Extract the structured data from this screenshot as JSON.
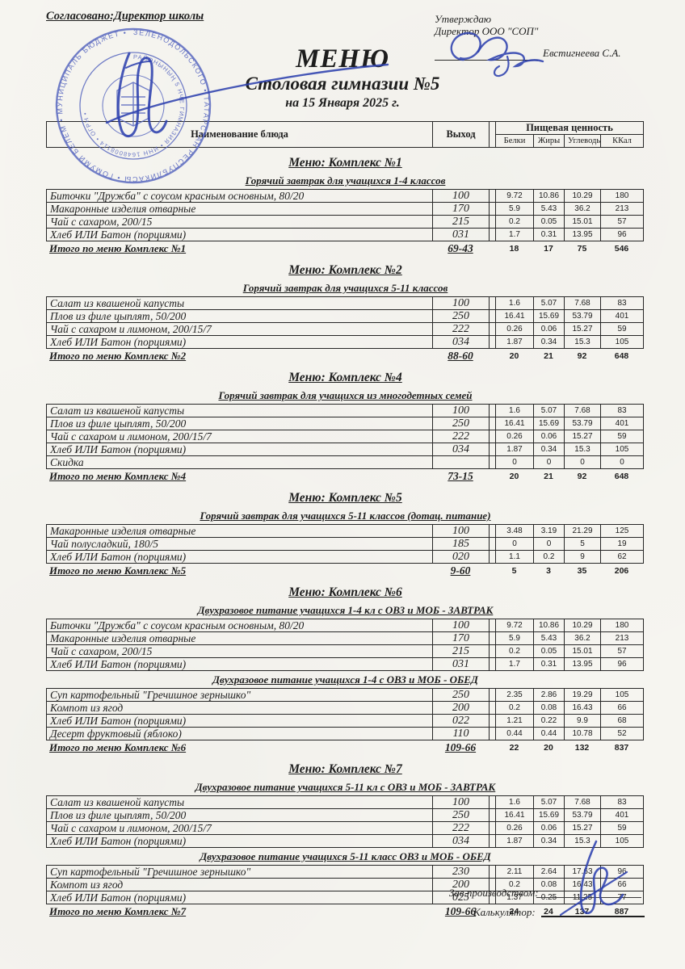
{
  "approval_left": "Согласовано:Директор школы",
  "approval_right": {
    "line1": "Утверждаю",
    "line2": "Директор ООО \"СОП\"",
    "signer": "Евстигнеева С.А."
  },
  "title": {
    "main": "МЕНЮ",
    "org": "Столовая гимназии №5",
    "date": "на 15 Января 2025 г."
  },
  "columns": {
    "dish": "Наименование блюда",
    "output": "Выход",
    "nutrition_group": "Пищевая ценность",
    "nutrition": [
      "Белки",
      "Жиры",
      "Углеводы",
      "ККал"
    ]
  },
  "sections": [
    {
      "title": "Меню: Комплекс №1",
      "subsections": [
        {
          "subtitle": "Горячий завтрак для учащихся 1-4 классов",
          "rows": [
            [
              "Биточки  \"Дружба\" с соусом красным основным, 80/20",
              "100",
              "9.72",
              "10.86",
              "10.29",
              "180"
            ],
            [
              "Макаронные изделия отварные",
              "170",
              "5.9",
              "5.43",
              "36.2",
              "213"
            ],
            [
              "Чай с сахаром, 200/15",
              "215",
              "0.2",
              "0.05",
              "15.01",
              "57"
            ],
            [
              "Хлеб ИЛИ Батон (порциями)",
              "031",
              "1.7",
              "0.31",
              "13.95",
              "96"
            ]
          ]
        }
      ],
      "total": {
        "label": "Итого по меню Комплекс №1",
        "output": "69-43",
        "values": [
          "18",
          "17",
          "75",
          "546"
        ]
      }
    },
    {
      "title": "Меню: Комплекс №2",
      "subsections": [
        {
          "subtitle": "Горячий завтрак для учащихся 5-11 классов",
          "rows": [
            [
              "Салат из квашеной капусты",
              "100",
              "1.6",
              "5.07",
              "7.68",
              "83"
            ],
            [
              "Плов из филе цыплят, 50/200",
              "250",
              "16.41",
              "15.69",
              "53.79",
              "401"
            ],
            [
              "Чай с сахаром и лимоном, 200/15/7",
              "222",
              "0.26",
              "0.06",
              "15.27",
              "59"
            ],
            [
              "Хлеб ИЛИ Батон (порциями)",
              "034",
              "1.87",
              "0.34",
              "15.3",
              "105"
            ]
          ]
        }
      ],
      "total": {
        "label": "Итого по меню Комплекс №2",
        "output": "88-60",
        "values": [
          "20",
          "21",
          "92",
          "648"
        ]
      }
    },
    {
      "title": "Меню: Комплекс №4",
      "subsections": [
        {
          "subtitle": "Горячий завтрак для учащихся из многодетных семей",
          "rows": [
            [
              "Салат из квашеной капусты",
              "100",
              "1.6",
              "5.07",
              "7.68",
              "83"
            ],
            [
              "Плов из филе цыплят, 50/200",
              "250",
              "16.41",
              "15.69",
              "53.79",
              "401"
            ],
            [
              "Чай с сахаром и лимоном, 200/15/7",
              "222",
              "0.26",
              "0.06",
              "15.27",
              "59"
            ],
            [
              "Хлеб ИЛИ Батон (порциями)",
              "034",
              "1.87",
              "0.34",
              "15.3",
              "105"
            ],
            [
              "Скидка",
              "",
              "0",
              "0",
              "0",
              "0"
            ]
          ]
        }
      ],
      "total": {
        "label": "Итого по меню Комплекс №4",
        "output": "73-15",
        "values": [
          "20",
          "21",
          "92",
          "648"
        ]
      }
    },
    {
      "title": "Меню: Комплекс №5",
      "subsections": [
        {
          "subtitle": "Горячий завтрак для учащихся 5-11 классов (дотац. питание)",
          "rows": [
            [
              "Макаронные изделия отварные",
              "100",
              "3.48",
              "3.19",
              "21.29",
              "125"
            ],
            [
              "Чай полусладкий, 180/5",
              "185",
              "0",
              "0",
              "5",
              "19"
            ],
            [
              "Хлеб ИЛИ Батон (порциями)",
              "020",
              "1.1",
              "0.2",
              "9",
              "62"
            ]
          ]
        }
      ],
      "total": {
        "label": "Итого по меню Комплекс №5",
        "output": "9-60",
        "values": [
          "5",
          "3",
          "35",
          "206"
        ]
      }
    },
    {
      "title": "Меню: Комплекс №6",
      "subsections": [
        {
          "subtitle": "Двухразовое питание учащихся 1-4 кл с ОВЗ и МОБ - ЗАВТРАК",
          "rows": [
            [
              "Биточки  \"Дружба\" с соусом красным основным, 80/20",
              "100",
              "9.72",
              "10.86",
              "10.29",
              "180"
            ],
            [
              "Макаронные изделия отварные",
              "170",
              "5.9",
              "5.43",
              "36.2",
              "213"
            ],
            [
              "Чай с сахаром, 200/15",
              "215",
              "0.2",
              "0.05",
              "15.01",
              "57"
            ],
            [
              "Хлеб ИЛИ Батон (порциями)",
              "031",
              "1.7",
              "0.31",
              "13.95",
              "96"
            ]
          ]
        },
        {
          "subtitle": "Двухразовое питание учащихся 1-4 с ОВЗ и МОБ - ОБЕД",
          "rows": [
            [
              "Суп картофельный \"Гречишное зернышко\"",
              "250",
              "2.35",
              "2.86",
              "19.29",
              "105"
            ],
            [
              "Компот из  ягод",
              "200",
              "0.2",
              "0.08",
              "16.43",
              "66"
            ],
            [
              "Хлеб ИЛИ Батон (порциями)",
              "022",
              "1.21",
              "0.22",
              "9.9",
              "68"
            ],
            [
              "Десерт фруктовый (яблоко)",
              "110",
              "0.44",
              "0.44",
              "10.78",
              "52"
            ]
          ]
        }
      ],
      "total": {
        "label": "Итого по меню Комплекс №6",
        "output": "109-66",
        "values": [
          "22",
          "20",
          "132",
          "837"
        ]
      }
    },
    {
      "title": "Меню: Комплекс №7",
      "subsections": [
        {
          "subtitle": "Двухразовое питание учащихся 5-11 кл с  ОВЗ и МОБ - ЗАВТРАК",
          "rows": [
            [
              "Салат из квашеной капусты",
              "100",
              "1.6",
              "5.07",
              "7.68",
              "83"
            ],
            [
              "Плов из филе цыплят, 50/200",
              "250",
              "16.41",
              "15.69",
              "53.79",
              "401"
            ],
            [
              "Чай с сахаром и лимоном, 200/15/7",
              "222",
              "0.26",
              "0.06",
              "15.27",
              "59"
            ],
            [
              "Хлеб ИЛИ Батон (порциями)",
              "034",
              "1.87",
              "0.34",
              "15.3",
              "105"
            ]
          ]
        },
        {
          "subtitle": "Двухразовое питание учащихся 5-11 класс ОВЗ и МОБ - ОБЕД",
          "rows": [
            [
              "Суп картофельный \"Гречишное зернышко\"",
              "230",
              "2.11",
              "2.64",
              "17.63",
              "96"
            ],
            [
              "Компот из  ягод",
              "200",
              "0.2",
              "0.08",
              "16.43",
              "66"
            ],
            [
              "Хлеб ИЛИ Батон (порциями)",
              "025",
              "1.37",
              "0.25",
              "11.25",
              "77"
            ]
          ]
        }
      ],
      "total": {
        "label": "Итого по меню Комплекс №7",
        "output": "109-66",
        "values": [
          "24",
          "24",
          "137",
          "887"
        ]
      }
    }
  ],
  "footer": {
    "production_label": "Зав.производством:",
    "calculator_label": "Калькулятор:"
  },
  "stamp": {
    "outer_text": "ЗЕЛЕНОДОЛЬСКОГО • ТАТАРСТАН РЕСПУБЛИКАСЫ • ГОМУМИ БЕЛЕМ • МУНИЦИПАЛЬ БЮДЖЕТ •",
    "inner_text": "РАЙОНЫНЫҢ 5 НЧЕ ГИМНАЗИЯ • ИНН 1648008114 • ОГРН •"
  }
}
